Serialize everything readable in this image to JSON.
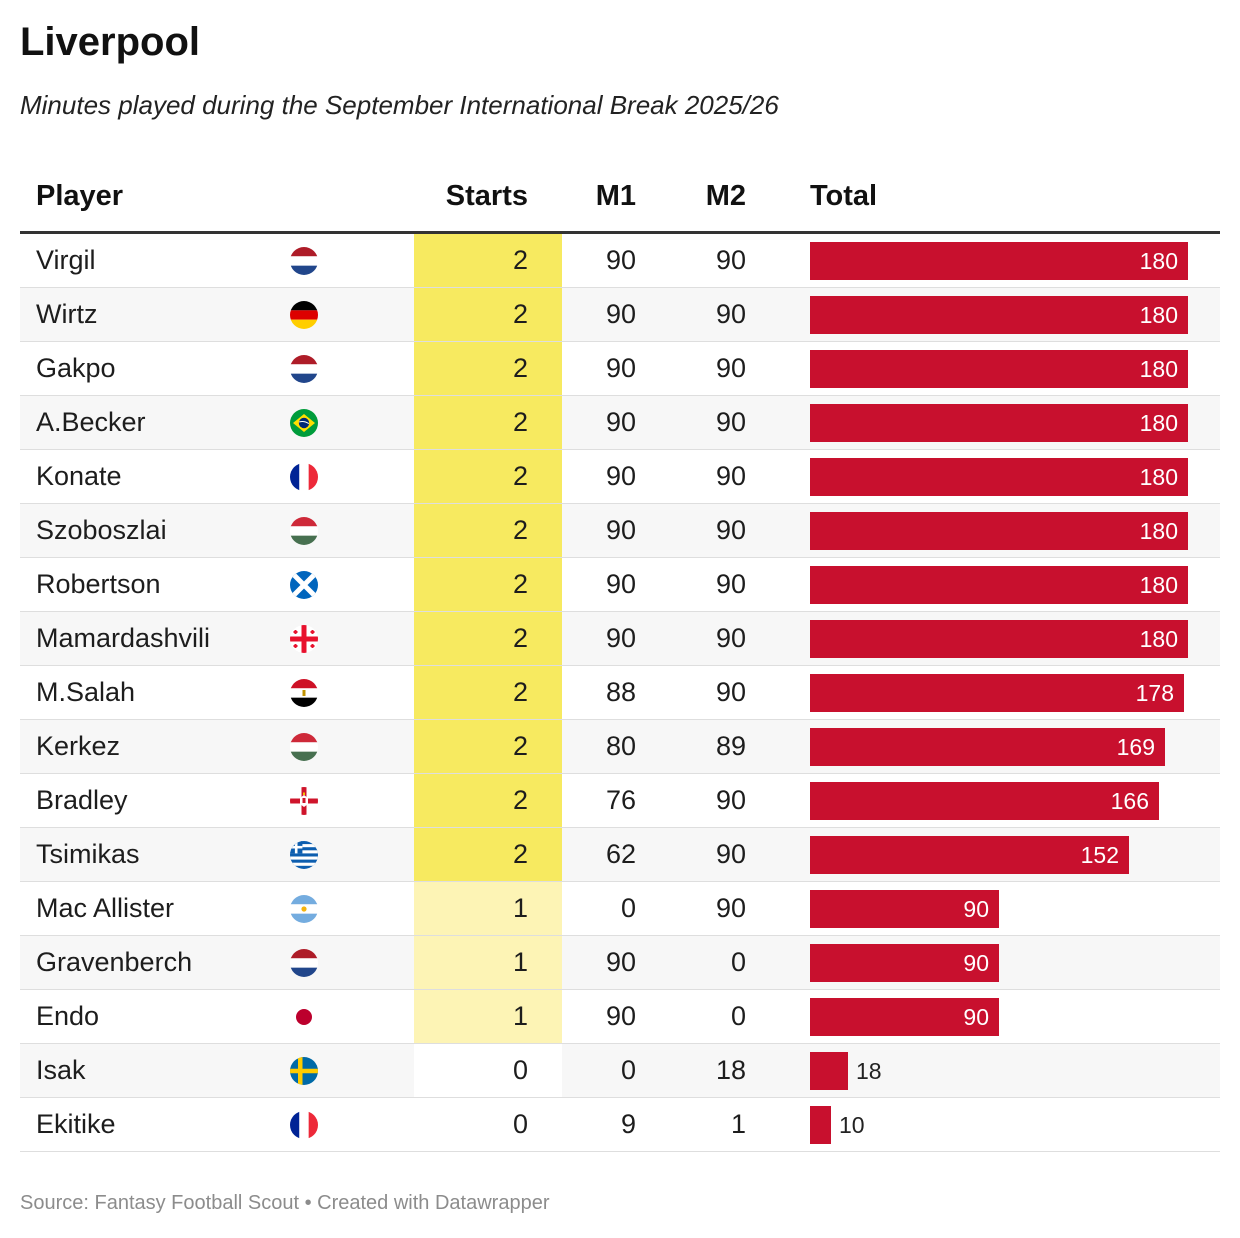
{
  "title": "Liverpool",
  "subtitle": "Minutes played during the September International Break 2025/26",
  "source": "Source: Fantasy Football Scout • Created with Datawrapper",
  "colors": {
    "bar": "#c8102e",
    "starts_2": "#f7ea60",
    "starts_1": "#fdf4b5",
    "starts_0": "#ffffff"
  },
  "headers": {
    "player": "Player",
    "starts": "Starts",
    "m1": "M1",
    "m2": "M2",
    "total": "Total"
  },
  "chart_data": {
    "type": "table",
    "columns": [
      "Player",
      "Starts",
      "M1",
      "M2",
      "Total"
    ],
    "total_scale_max": 180,
    "rows": [
      {
        "player": "Virgil",
        "flag": "netherlands-flag-icon",
        "starts": 2,
        "m1": 90,
        "m2": 90,
        "total": 180
      },
      {
        "player": "Wirtz",
        "flag": "germany-flag-icon",
        "starts": 2,
        "m1": 90,
        "m2": 90,
        "total": 180
      },
      {
        "player": "Gakpo",
        "flag": "netherlands-flag-icon",
        "starts": 2,
        "m1": 90,
        "m2": 90,
        "total": 180
      },
      {
        "player": "A.Becker",
        "flag": "brazil-flag-icon",
        "starts": 2,
        "m1": 90,
        "m2": 90,
        "total": 180
      },
      {
        "player": "Konate",
        "flag": "france-flag-icon",
        "starts": 2,
        "m1": 90,
        "m2": 90,
        "total": 180
      },
      {
        "player": "Szoboszlai",
        "flag": "hungary-flag-icon",
        "starts": 2,
        "m1": 90,
        "m2": 90,
        "total": 180
      },
      {
        "player": "Robertson",
        "flag": "scotland-flag-icon",
        "starts": 2,
        "m1": 90,
        "m2": 90,
        "total": 180
      },
      {
        "player": "Mamardashvili",
        "flag": "georgia-flag-icon",
        "starts": 2,
        "m1": 90,
        "m2": 90,
        "total": 180
      },
      {
        "player": "M.Salah",
        "flag": "egypt-flag-icon",
        "starts": 2,
        "m1": 88,
        "m2": 90,
        "total": 178
      },
      {
        "player": "Kerkez",
        "flag": "hungary-flag-icon",
        "starts": 2,
        "m1": 80,
        "m2": 89,
        "total": 169
      },
      {
        "player": "Bradley",
        "flag": "northern-ireland-flag-icon",
        "starts": 2,
        "m1": 76,
        "m2": 90,
        "total": 166
      },
      {
        "player": "Tsimikas",
        "flag": "greece-flag-icon",
        "starts": 2,
        "m1": 62,
        "m2": 90,
        "total": 152
      },
      {
        "player": "Mac Allister",
        "flag": "argentina-flag-icon",
        "starts": 1,
        "m1": 0,
        "m2": 90,
        "total": 90
      },
      {
        "player": "Gravenberch",
        "flag": "netherlands-flag-icon",
        "starts": 1,
        "m1": 90,
        "m2": 0,
        "total": 90
      },
      {
        "player": "Endo",
        "flag": "japan-flag-icon",
        "starts": 1,
        "m1": 90,
        "m2": 0,
        "total": 90
      },
      {
        "player": "Isak",
        "flag": "sweden-flag-icon",
        "starts": 0,
        "m1": 0,
        "m2": 18,
        "total": 18
      },
      {
        "player": "Ekitike",
        "flag": "france-flag-icon",
        "starts": 0,
        "m1": 9,
        "m2": 1,
        "total": 10
      }
    ]
  }
}
